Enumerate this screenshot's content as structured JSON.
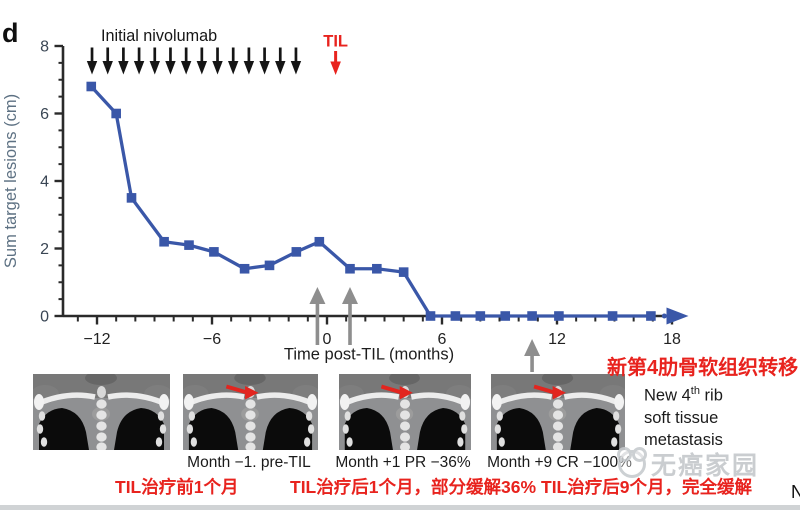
{
  "panel_label": "d",
  "colors": {
    "line_blue": "#3a57a8",
    "red": "#e8231e",
    "black_arrow": "#151515",
    "gray_arrow": "#8e8e8e",
    "axis": "#2a2a2a",
    "y_tick_label_color": "#3a4654",
    "ylabel_color": "#5d7183",
    "watermark_gray": "#c3c7ca"
  },
  "chart_data": {
    "type": "line",
    "title": "",
    "xlabel": "Time post-TIL (months)",
    "ylabel": "Sum target lesions (cm)",
    "xlim": [
      -13.7,
      19
    ],
    "ylim": [
      0,
      8
    ],
    "grid": "off",
    "legend": "none",
    "x_ticks_labeled": [
      -12,
      -6,
      0,
      6,
      12,
      18
    ],
    "x_tick_labels": [
      "−12",
      "−6",
      "0",
      "6",
      "12",
      "18"
    ],
    "x_minor_tick_step_months": 1,
    "y_ticks_labeled": [
      0,
      2,
      4,
      6,
      8
    ],
    "y_tick_labels": [
      "0",
      "2",
      "4",
      "6",
      "8"
    ],
    "y_minor_tick_step": 0.5,
    "series": [
      {
        "name": "Sum target lesions",
        "color": "#3a57a8",
        "marker": "square",
        "x": [
          -12.3,
          -11.0,
          -10.2,
          -8.5,
          -7.2,
          -5.9,
          -4.3,
          -3.0,
          -1.6,
          -0.4,
          1.2,
          2.6,
          4.0,
          5.4,
          6.7,
          8.0,
          9.3,
          10.7,
          12.1,
          14.9,
          16.9
        ],
        "y": [
          6.8,
          6.0,
          3.5,
          2.2,
          2.1,
          1.9,
          1.4,
          1.5,
          1.9,
          2.2,
          1.4,
          1.4,
          1.3,
          0,
          0,
          0,
          0,
          0,
          0,
          0,
          0
        ]
      }
    ],
    "end_dot_x": 17.6,
    "end_arrow": true,
    "annotations": {
      "nivolumab_label": "Initial nivolumab",
      "nivolumab_arrow_count": 14,
      "nivolumab_arrow_x_range_months": [
        -12.26,
        -1.62
      ],
      "til_label": "TIL",
      "til_arrow_x_month": 0.45,
      "gray_up_arrows_months": [
        -0.5,
        1.2,
        10.7
      ]
    }
  },
  "ct_panels": [
    {
      "label": "",
      "has_red_arrow": false
    },
    {
      "label": "Month −1. pre-TIL",
      "has_red_arrow": true
    },
    {
      "label": "Month +1 PR −36%",
      "has_red_arrow": true
    },
    {
      "label": "Month +9 CR −100%",
      "has_red_arrow": true
    }
  ],
  "red_captions": [
    "TIL治疗前1个月",
    "TIL治疗后1个月，部分缓解36%",
    "TIL治疗后9个月，完全缓解"
  ],
  "metastasis_note": {
    "chinese": "新第4肋骨软组织转移",
    "english_prefix": "New 4",
    "english_sup": "th",
    "english_suffix": " rib",
    "line2": "soft tissue",
    "line3": "metastasis"
  },
  "watermark": {
    "text": "无癌家园"
  },
  "corner_fragment": "N"
}
